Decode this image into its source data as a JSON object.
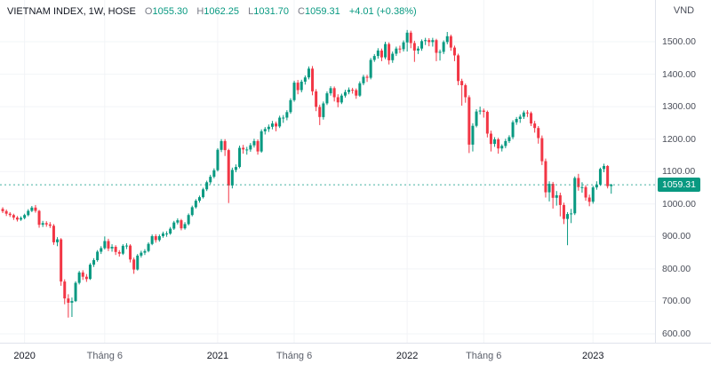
{
  "header": {
    "symbol": "VIETNAM INDEX, 1W, HOSE",
    "ohlc": {
      "open_label": "O",
      "open": "1055.30",
      "high_label": "H",
      "high": "1062.25",
      "low_label": "L",
      "low": "1031.70",
      "close_label": "C",
      "close": "1059.31",
      "change": "+4.01 (+0.38%)"
    }
  },
  "price_axis": {
    "currency": "VND",
    "ticks": [
      {
        "label": "1500.00",
        "value": 1500
      },
      {
        "label": "1400.00",
        "value": 1400
      },
      {
        "label": "1300.00",
        "value": 1300
      },
      {
        "label": "1200.00",
        "value": 1200
      },
      {
        "label": "1100.00",
        "value": 1100
      },
      {
        "label": "1000.00",
        "value": 1000
      },
      {
        "label": "900.00",
        "value": 900
      },
      {
        "label": "800.00",
        "value": 800
      },
      {
        "label": "700.00",
        "value": 700
      },
      {
        "label": "600.00",
        "value": 600
      }
    ],
    "last_price": {
      "label": "1059.31",
      "value": 1059.31,
      "color": "#089981"
    }
  },
  "time_axis": {
    "ticks": [
      {
        "label": "2020",
        "index": 6,
        "type": "year"
      },
      {
        "label": "Tháng 6",
        "index": 28,
        "type": "month"
      },
      {
        "label": "2021",
        "index": 59,
        "type": "year"
      },
      {
        "label": "Tháng 6",
        "index": 80,
        "type": "month"
      },
      {
        "label": "2022",
        "index": 111,
        "type": "year"
      },
      {
        "label": "Tháng 6",
        "index": 132,
        "type": "month"
      },
      {
        "label": "2023",
        "index": 162,
        "type": "year"
      }
    ]
  },
  "chart_data": {
    "type": "candlestick",
    "title": "VIETNAM INDEX, 1W, HOSE",
    "interval": "1W",
    "currency": "VND",
    "up_color": "#089981",
    "down_color": "#f23645",
    "grid_color": "#f2f4f7",
    "ylim": [
      575,
      1600
    ],
    "last_price": 1059.31,
    "candles_format": [
      "open",
      "high",
      "low",
      "close"
    ],
    "candles": [
      [
        985,
        990,
        972,
        978
      ],
      [
        978,
        983,
        963,
        970
      ],
      [
        970,
        975,
        960,
        966
      ],
      [
        966,
        970,
        951,
        958
      ],
      [
        958,
        963,
        946,
        952
      ],
      [
        952,
        962,
        948,
        957
      ],
      [
        957,
        970,
        953,
        966
      ],
      [
        966,
        984,
        962,
        979
      ],
      [
        979,
        994,
        975,
        989
      ],
      [
        989,
        997,
        973,
        979
      ],
      [
        979,
        982,
        927,
        936
      ],
      [
        936,
        948,
        929,
        941
      ],
      [
        941,
        947,
        930,
        937
      ],
      [
        937,
        944,
        926,
        933
      ],
      [
        933,
        938,
        874,
        882
      ],
      [
        882,
        898,
        870,
        891
      ],
      [
        891,
        895,
        748,
        761
      ],
      [
        761,
        768,
        691,
        709
      ],
      [
        709,
        722,
        650,
        696
      ],
      [
        696,
        712,
        652,
        701
      ],
      [
        701,
        762,
        698,
        757
      ],
      [
        757,
        794,
        752,
        789
      ],
      [
        789,
        796,
        766,
        776
      ],
      [
        776,
        784,
        760,
        769
      ],
      [
        769,
        818,
        766,
        813
      ],
      [
        813,
        833,
        806,
        827
      ],
      [
        827,
        858,
        822,
        853
      ],
      [
        853,
        870,
        846,
        864
      ],
      [
        864,
        900,
        860,
        886
      ],
      [
        886,
        893,
        855,
        863
      ],
      [
        863,
        876,
        853,
        868
      ],
      [
        868,
        873,
        843,
        852
      ],
      [
        852,
        858,
        838,
        847
      ],
      [
        847,
        876,
        843,
        871
      ],
      [
        871,
        879,
        861,
        872
      ],
      [
        872,
        876,
        820,
        829
      ],
      [
        829,
        835,
        785,
        798
      ],
      [
        798,
        846,
        795,
        841
      ],
      [
        841,
        856,
        835,
        850
      ],
      [
        850,
        861,
        843,
        855
      ],
      [
        855,
        882,
        851,
        877
      ],
      [
        877,
        906,
        873,
        901
      ],
      [
        901,
        907,
        881,
        889
      ],
      [
        889,
        906,
        884,
        901
      ],
      [
        901,
        915,
        896,
        909
      ],
      [
        909,
        916,
        899,
        909
      ],
      [
        909,
        929,
        905,
        924
      ],
      [
        924,
        948,
        920,
        943
      ],
      [
        943,
        956,
        937,
        950
      ],
      [
        950,
        954,
        919,
        925
      ],
      [
        925,
        944,
        921,
        938
      ],
      [
        938,
        971,
        934,
        966
      ],
      [
        966,
        995,
        962,
        990
      ],
      [
        990,
        1015,
        986,
        1010
      ],
      [
        1010,
        1026,
        1004,
        1021
      ],
      [
        1021,
        1050,
        1017,
        1045
      ],
      [
        1045,
        1072,
        1040,
        1067
      ],
      [
        1067,
        1090,
        1061,
        1084
      ],
      [
        1084,
        1110,
        1079,
        1104
      ],
      [
        1104,
        1172,
        1100,
        1167
      ],
      [
        1167,
        1200,
        1160,
        1194
      ],
      [
        1194,
        1200,
        1148,
        1166
      ],
      [
        1166,
        1170,
        1003,
        1057
      ],
      [
        1057,
        1112,
        1048,
        1105
      ],
      [
        1105,
        1122,
        1098,
        1114
      ],
      [
        1114,
        1180,
        1110,
        1173
      ],
      [
        1173,
        1182,
        1155,
        1168
      ],
      [
        1168,
        1176,
        1152,
        1168
      ],
      [
        1168,
        1188,
        1161,
        1181
      ],
      [
        1181,
        1201,
        1174,
        1194
      ],
      [
        1194,
        1199,
        1152,
        1162
      ],
      [
        1162,
        1230,
        1158,
        1224
      ],
      [
        1224,
        1237,
        1214,
        1231
      ],
      [
        1231,
        1245,
        1222,
        1238
      ],
      [
        1238,
        1256,
        1230,
        1248
      ],
      [
        1248,
        1254,
        1224,
        1239
      ],
      [
        1239,
        1272,
        1234,
        1266
      ],
      [
        1266,
        1274,
        1250,
        1266
      ],
      [
        1266,
        1289,
        1258,
        1283
      ],
      [
        1283,
        1326,
        1278,
        1320
      ],
      [
        1320,
        1380,
        1315,
        1374
      ],
      [
        1374,
        1382,
        1338,
        1351
      ],
      [
        1351,
        1383,
        1344,
        1377
      ],
      [
        1377,
        1396,
        1368,
        1390
      ],
      [
        1390,
        1424,
        1384,
        1417
      ],
      [
        1417,
        1425,
        1335,
        1347
      ],
      [
        1347,
        1354,
        1286,
        1299
      ],
      [
        1299,
        1306,
        1243,
        1268
      ],
      [
        1268,
        1316,
        1260,
        1310
      ],
      [
        1310,
        1347,
        1305,
        1341
      ],
      [
        1341,
        1363,
        1334,
        1357
      ],
      [
        1357,
        1362,
        1316,
        1329
      ],
      [
        1329,
        1338,
        1298,
        1313
      ],
      [
        1313,
        1340,
        1308,
        1334
      ],
      [
        1334,
        1352,
        1328,
        1345
      ],
      [
        1345,
        1359,
        1338,
        1352
      ],
      [
        1352,
        1358,
        1340,
        1351
      ],
      [
        1351,
        1356,
        1324,
        1334
      ],
      [
        1334,
        1378,
        1330,
        1372
      ],
      [
        1372,
        1398,
        1366,
        1392
      ],
      [
        1392,
        1398,
        1376,
        1389
      ],
      [
        1389,
        1450,
        1384,
        1444
      ],
      [
        1444,
        1462,
        1438,
        1456
      ],
      [
        1456,
        1480,
        1448,
        1473
      ],
      [
        1473,
        1479,
        1440,
        1452
      ],
      [
        1452,
        1500,
        1446,
        1493
      ],
      [
        1493,
        1498,
        1430,
        1443
      ],
      [
        1443,
        1470,
        1435,
        1463
      ],
      [
        1463,
        1485,
        1456,
        1479
      ],
      [
        1479,
        1488,
        1465,
        1477
      ],
      [
        1477,
        1504,
        1470,
        1498
      ],
      [
        1498,
        1536,
        1470,
        1528
      ],
      [
        1528,
        1534,
        1480,
        1496
      ],
      [
        1496,
        1503,
        1438,
        1473
      ],
      [
        1473,
        1486,
        1462,
        1479
      ],
      [
        1479,
        1507,
        1472,
        1502
      ],
      [
        1502,
        1512,
        1490,
        1505
      ],
      [
        1505,
        1511,
        1486,
        1499
      ],
      [
        1499,
        1512,
        1485,
        1505
      ],
      [
        1505,
        1509,
        1440,
        1466
      ],
      [
        1466,
        1476,
        1442,
        1469
      ],
      [
        1469,
        1504,
        1462,
        1499
      ],
      [
        1499,
        1530,
        1492,
        1517
      ],
      [
        1517,
        1522,
        1472,
        1482
      ],
      [
        1482,
        1488,
        1440,
        1458
      ],
      [
        1458,
        1463,
        1366,
        1379
      ],
      [
        1379,
        1386,
        1303,
        1366
      ],
      [
        1366,
        1371,
        1312,
        1329
      ],
      [
        1329,
        1335,
        1157,
        1183
      ],
      [
        1183,
        1249,
        1162,
        1241
      ],
      [
        1241,
        1292,
        1236,
        1285
      ],
      [
        1285,
        1300,
        1276,
        1288
      ],
      [
        1288,
        1294,
        1266,
        1284
      ],
      [
        1284,
        1288,
        1205,
        1217
      ],
      [
        1217,
        1226,
        1162,
        1185
      ],
      [
        1185,
        1206,
        1176,
        1199
      ],
      [
        1199,
        1204,
        1155,
        1171
      ],
      [
        1171,
        1184,
        1162,
        1179
      ],
      [
        1179,
        1201,
        1172,
        1194
      ],
      [
        1194,
        1212,
        1188,
        1206
      ],
      [
        1206,
        1258,
        1200,
        1252
      ],
      [
        1252,
        1268,
        1244,
        1262
      ],
      [
        1262,
        1276,
        1250,
        1269
      ],
      [
        1269,
        1288,
        1262,
        1282
      ],
      [
        1282,
        1289,
        1268,
        1280
      ],
      [
        1280,
        1285,
        1240,
        1248
      ],
      [
        1248,
        1256,
        1220,
        1234
      ],
      [
        1234,
        1240,
        1186,
        1203
      ],
      [
        1203,
        1211,
        1120,
        1132
      ],
      [
        1132,
        1140,
        1020,
        1036
      ],
      [
        1036,
        1070,
        1008,
        1062
      ],
      [
        1062,
        1068,
        986,
        1019
      ],
      [
        1019,
        1040,
        995,
        1027
      ],
      [
        1027,
        1035,
        962,
        997
      ],
      [
        997,
        1004,
        938,
        954
      ],
      [
        954,
        975,
        873,
        969
      ],
      [
        969,
        985,
        941,
        971
      ],
      [
        971,
        1085,
        966,
        1080
      ],
      [
        1080,
        1093,
        1041,
        1052
      ],
      [
        1052,
        1067,
        1035,
        1052
      ],
      [
        1052,
        1058,
        1010,
        1020
      ],
      [
        1020,
        1029,
        993,
        1007
      ],
      [
        1007,
        1056,
        1001,
        1051
      ],
      [
        1051,
        1070,
        1044,
        1060
      ],
      [
        1060,
        1112,
        1056,
        1108
      ],
      [
        1108,
        1124,
        1098,
        1117
      ],
      [
        1117,
        1120,
        1048,
        1055
      ],
      [
        1055.3,
        1062.25,
        1031.7,
        1059.31
      ]
    ]
  }
}
